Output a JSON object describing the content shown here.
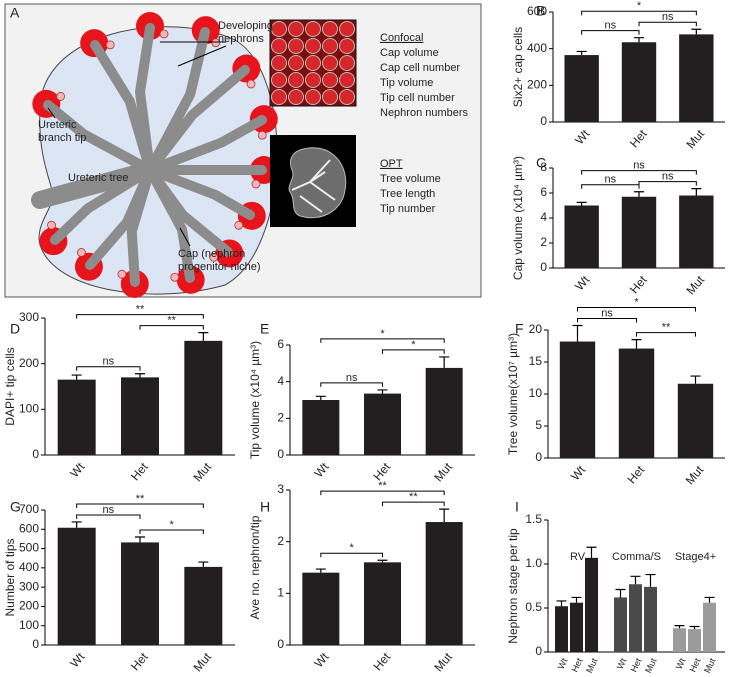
{
  "diagram": {
    "panel": "A",
    "annotations": [
      {
        "lines": [
          "Developing",
          "nephrons"
        ]
      },
      {
        "lines": [
          "Ureteric",
          "branch tip"
        ]
      },
      {
        "lines": [
          "Ureteric tree"
        ]
      },
      {
        "lines": [
          "Cap (nephron",
          "progenitor niche)"
        ]
      }
    ],
    "methods": [
      {
        "title": "Confocal",
        "items": [
          "Cap volume",
          "Cap cell number",
          "Tip volume",
          "Tip cell number",
          "Nephron numbers"
        ]
      },
      {
        "title": "OPT",
        "items": [
          "Tree volume",
          "Tree length",
          "Tip number"
        ]
      }
    ]
  },
  "chart_data": [
    {
      "type": "bar",
      "panel": "B",
      "ylabel": "Six2+ cap cells",
      "categories": [
        "Wt",
        "Het",
        "Mut"
      ],
      "values": [
        365,
        435,
        478
      ],
      "errors": [
        20,
        25,
        28
      ],
      "color": "#231f20",
      "ylim": [
        0,
        600
      ],
      "yticks": [
        0,
        200,
        400,
        600
      ],
      "comparisons": [
        {
          "pair": [
            "Wt",
            "Het"
          ],
          "label": "ns"
        },
        {
          "pair": [
            "Het",
            "Mut"
          ],
          "label": "ns"
        },
        {
          "pair": [
            "Wt",
            "Mut"
          ],
          "label": "*"
        }
      ]
    },
    {
      "type": "bar",
      "panel": "C",
      "ylabel": "Cap volume (x10⁴ µm³)",
      "categories": [
        "Wt",
        "Het",
        "Mut"
      ],
      "values": [
        5.0,
        5.7,
        5.8
      ],
      "errors": [
        0.25,
        0.4,
        0.55
      ],
      "color": "#231f20",
      "ylim": [
        0,
        8
      ],
      "yticks": [
        0,
        2,
        4,
        6,
        8
      ],
      "comparisons": [
        {
          "pair": [
            "Wt",
            "Het"
          ],
          "label": "ns"
        },
        {
          "pair": [
            "Het",
            "Mut"
          ],
          "label": "ns"
        },
        {
          "pair": [
            "Wt",
            "Mut"
          ],
          "label": "ns"
        }
      ]
    },
    {
      "type": "bar",
      "panel": "D",
      "ylabel": "DAPI+ tip cells",
      "categories": [
        "Wt",
        "Het",
        "Mut"
      ],
      "values": [
        165,
        170,
        250
      ],
      "errors": [
        10,
        8,
        18
      ],
      "color": "#231f20",
      "ylim": [
        0,
        300
      ],
      "yticks": [
        0,
        100,
        200,
        300
      ],
      "comparisons": [
        {
          "pair": [
            "Wt",
            "Het"
          ],
          "label": "ns"
        },
        {
          "pair": [
            "Het",
            "Mut"
          ],
          "label": "**"
        },
        {
          "pair": [
            "Wt",
            "Mut"
          ],
          "label": "**"
        }
      ]
    },
    {
      "type": "bar",
      "panel": "E",
      "ylabel": "Tip volume (x10⁴ µm³)",
      "categories": [
        "Wt",
        "Het",
        "Mut"
      ],
      "values": [
        3.0,
        3.35,
        4.75
      ],
      "errors": [
        0.2,
        0.2,
        0.6
      ],
      "color": "#231f20",
      "ylim": [
        0,
        6
      ],
      "yticks": [
        0,
        2,
        4,
        6
      ],
      "comparisons": [
        {
          "pair": [
            "Wt",
            "Het"
          ],
          "label": "ns"
        },
        {
          "pair": [
            "Het",
            "Mut"
          ],
          "label": "*"
        },
        {
          "pair": [
            "Wt",
            "Mut"
          ],
          "label": "*"
        }
      ]
    },
    {
      "type": "bar",
      "panel": "F",
      "ylabel": "Tree volume(x10⁷ µm³)",
      "categories": [
        "Wt",
        "Het",
        "Mut"
      ],
      "values": [
        18.2,
        17.1,
        11.6
      ],
      "errors": [
        2.5,
        1.4,
        1.2
      ],
      "color": "#231f20",
      "ylim": [
        0,
        20
      ],
      "yticks": [
        0,
        5,
        10,
        15,
        20
      ],
      "comparisons": [
        {
          "pair": [
            "Wt",
            "Het"
          ],
          "label": "ns"
        },
        {
          "pair": [
            "Het",
            "Mut"
          ],
          "label": "**"
        },
        {
          "pair": [
            "Wt",
            "Mut"
          ],
          "label": "*"
        }
      ]
    },
    {
      "type": "bar",
      "panel": "G",
      "ylabel": "Number of tips",
      "categories": [
        "Wt",
        "Het",
        "Mut"
      ],
      "values": [
        608,
        532,
        405
      ],
      "errors": [
        30,
        28,
        25
      ],
      "color": "#231f20",
      "ylim": [
        0,
        700
      ],
      "yticks": [
        0,
        100,
        200,
        300,
        400,
        500,
        600,
        700
      ],
      "comparisons": [
        {
          "pair": [
            "Wt",
            "Het"
          ],
          "label": "ns"
        },
        {
          "pair": [
            "Het",
            "Mut"
          ],
          "label": "*"
        },
        {
          "pair": [
            "Wt",
            "Mut"
          ],
          "label": "**"
        }
      ]
    },
    {
      "type": "bar",
      "panel": "H",
      "ylabel": "Ave no. nephron/tip",
      "categories": [
        "Wt",
        "Het",
        "Mut"
      ],
      "values": [
        1.4,
        1.6,
        2.38
      ],
      "errors": [
        0.07,
        0.04,
        0.25
      ],
      "color": "#231f20",
      "ylim": [
        0,
        3
      ],
      "yticks": [
        0,
        1,
        2,
        3
      ],
      "comparisons": [
        {
          "pair": [
            "Wt",
            "Het"
          ],
          "label": "*"
        },
        {
          "pair": [
            "Het",
            "Mut"
          ],
          "label": "**"
        },
        {
          "pair": [
            "Wt",
            "Mut"
          ],
          "label": "**"
        }
      ]
    },
    {
      "type": "grouped_bar",
      "panel": "I",
      "ylabel": "Nephron stage per tip",
      "ylim": [
        0,
        1.5
      ],
      "yticks": [
        0,
        0.5,
        {
          "value": 1,
          "label": "1.0"
        },
        1.5
      ],
      "groups": [
        {
          "name": "RV",
          "color": "#231f20",
          "categories": [
            "Wt",
            "Het",
            "Mut"
          ],
          "values": [
            0.52,
            0.56,
            1.07
          ],
          "errors": [
            0.06,
            0.06,
            0.12
          ]
        },
        {
          "name": "Comma/S",
          "color": "#4a4a4a",
          "categories": [
            "Wt",
            "Het",
            "Mut"
          ],
          "values": [
            0.62,
            0.77,
            0.74
          ],
          "errors": [
            0.09,
            0.09,
            0.14
          ]
        },
        {
          "name": "Stage4+",
          "color": "#9b9b9b",
          "categories": [
            "Wt",
            "Het",
            "Mut"
          ],
          "values": [
            0.27,
            0.26,
            0.56
          ],
          "errors": [
            0.03,
            0.03,
            0.06
          ]
        }
      ]
    }
  ]
}
